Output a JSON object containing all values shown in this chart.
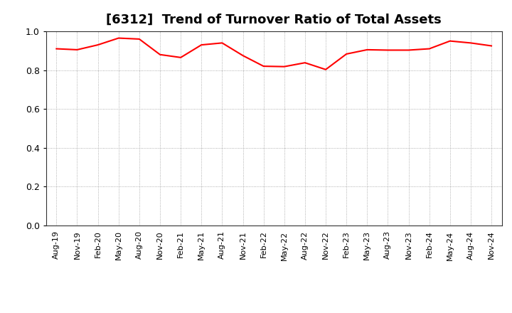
{
  "title": "[6312]  Trend of Turnover Ratio of Total Assets",
  "line_color": "#ff0000",
  "line_width": 1.5,
  "bg_color": "#ffffff",
  "grid_color": "#999999",
  "ylim": [
    0.0,
    1.0
  ],
  "yticks": [
    0.0,
    0.2,
    0.4,
    0.6,
    0.8,
    1.0
  ],
  "labels": [
    "Aug-19",
    "Nov-19",
    "Feb-20",
    "May-20",
    "Aug-20",
    "Nov-20",
    "Feb-21",
    "May-21",
    "Aug-21",
    "Nov-21",
    "Feb-22",
    "May-22",
    "Aug-22",
    "Nov-22",
    "Feb-23",
    "May-23",
    "Aug-23",
    "Nov-23",
    "Feb-24",
    "May-24",
    "Aug-24",
    "Nov-24"
  ],
  "values": [
    0.91,
    0.905,
    0.93,
    0.965,
    0.96,
    0.88,
    0.865,
    0.93,
    0.94,
    0.875,
    0.82,
    0.818,
    0.838,
    0.803,
    0.883,
    0.905,
    0.903,
    0.903,
    0.91,
    0.95,
    0.94,
    0.925
  ],
  "title_fontsize": 13,
  "tick_fontsize": 9,
  "xlabel_fontsize": 8
}
